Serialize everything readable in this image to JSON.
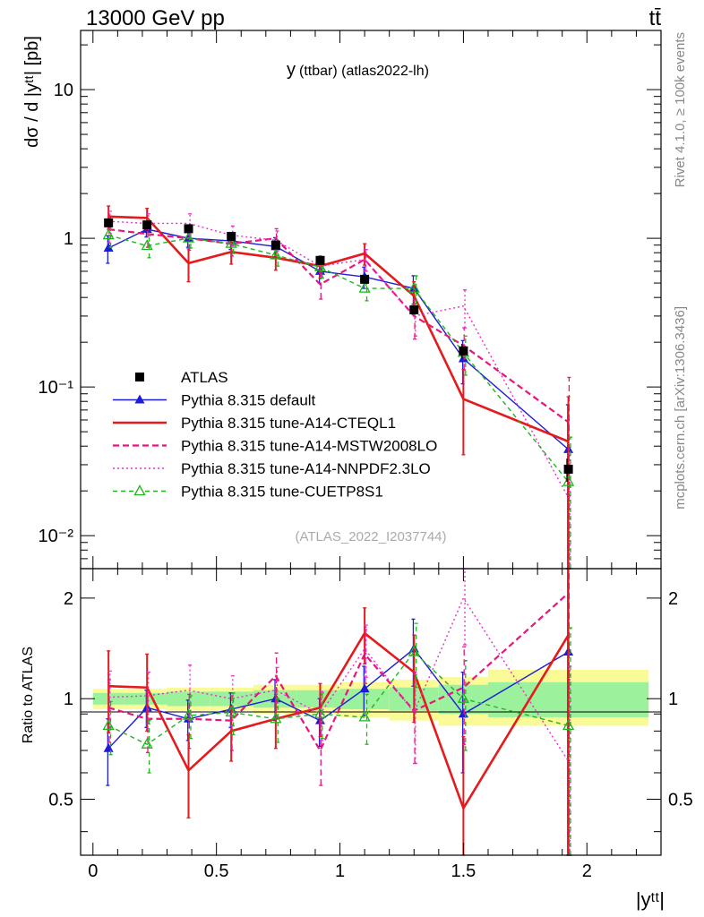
{
  "header": {
    "energy_label": "13000 GeV pp",
    "process_label": "tt̄"
  },
  "side_labels": {
    "rivet": "Rivet 4.1.0, ≥ 100k events",
    "mcplots": "mcplots.cern.ch [arXiv:1306.3436]"
  },
  "chart_data": [
    {
      "type": "line",
      "panel": "main",
      "title": "y(ttbar) (atlas2022-lh)",
      "title_main": "y",
      "title_sub": "(ttbar) (atlas2022-lh)",
      "watermark": "(ATLAS_2022_I2037744)",
      "ylabel": "dσ / d |yᵗᵗ| [pb]",
      "yscale": "log",
      "ylim": [
        0.006,
        25
      ],
      "xlim": [
        -0.05,
        2.3
      ],
      "y_ticks": [
        {
          "value": 10,
          "label": "10"
        },
        {
          "value": 1,
          "label": "1"
        },
        {
          "value": 0.1,
          "label": "10⁻¹"
        },
        {
          "value": 0.01,
          "label": "10⁻²"
        }
      ],
      "x": [
        0.063,
        0.219,
        0.387,
        0.56,
        0.74,
        0.92,
        1.1,
        1.3,
        1.5,
        1.925
      ],
      "bin_edges": [
        0,
        0.125,
        0.3,
        0.475,
        0.65,
        0.825,
        1.0,
        1.2,
        1.4,
        1.6,
        2.25
      ],
      "series": [
        {
          "name": "ATLAS",
          "style": "data",
          "color": "#000000",
          "values": [
            1.27,
            1.23,
            1.16,
            1.03,
            0.9,
            0.71,
            0.53,
            0.33,
            0.175,
            0.028
          ],
          "err_lo": [
            0.05,
            0.05,
            0.05,
            0.04,
            0.04,
            0.03,
            0.03,
            0.02,
            0.02,
            0.005
          ],
          "err_hi": [
            0.05,
            0.05,
            0.05,
            0.04,
            0.04,
            0.03,
            0.03,
            0.02,
            0.02,
            0.005
          ]
        },
        {
          "name": "Pythia 8.315 default",
          "style": "solid",
          "marker": "triangle-filled",
          "color": "#1c1cd8",
          "values": [
            0.86,
            1.15,
            1.0,
            0.96,
            0.88,
            0.6,
            0.55,
            0.46,
            0.155,
            0.038
          ],
          "err_lo": [
            0.18,
            0.13,
            0.13,
            0.12,
            0.13,
            0.1,
            0.09,
            0.1,
            0.05,
            0.038
          ],
          "err_hi": [
            0.18,
            0.13,
            0.13,
            0.12,
            0.13,
            0.1,
            0.09,
            0.1,
            0.05,
            0.038
          ]
        },
        {
          "name": "Pythia 8.315 tune-A14-CTEQL1",
          "style": "solid-thick",
          "color": "#e41a1c",
          "values": [
            1.4,
            1.37,
            0.68,
            0.81,
            0.74,
            0.65,
            0.79,
            0.41,
            0.083,
            0.043
          ],
          "err_lo": [
            0.25,
            0.22,
            0.17,
            0.14,
            0.13,
            0.11,
            0.13,
            0.1,
            0.048,
            0.043
          ],
          "err_hi": [
            0.25,
            0.22,
            0.17,
            0.14,
            0.13,
            0.11,
            0.13,
            0.1,
            0.048,
            0.043
          ]
        },
        {
          "name": "Pythia 8.315 tune-A14-MSTW2008LO",
          "style": "dashed",
          "color": "#e8157a",
          "values": [
            1.15,
            1.07,
            1.0,
            0.92,
            1.0,
            0.49,
            0.72,
            0.3,
            0.19,
            0.058
          ],
          "err_lo": [
            0.22,
            0.2,
            0.17,
            0.16,
            0.16,
            0.1,
            0.12,
            0.09,
            0.06,
            0.058
          ],
          "err_hi": [
            0.22,
            0.2,
            0.17,
            0.16,
            0.16,
            0.1,
            0.12,
            0.09,
            0.06,
            0.058
          ]
        },
        {
          "name": "Pythia 8.315 tune-A14-NNPDF2.3LO",
          "style": "dotted",
          "color": "#e82fd0",
          "values": [
            1.3,
            1.26,
            1.26,
            1.05,
            0.97,
            0.65,
            0.72,
            0.3,
            0.35,
            0.018
          ],
          "err_lo": [
            0.22,
            0.2,
            0.2,
            0.16,
            0.15,
            0.1,
            0.12,
            0.08,
            0.1,
            0.018
          ],
          "err_hi": [
            0.22,
            0.2,
            0.2,
            0.16,
            0.15,
            0.1,
            0.12,
            0.08,
            0.1,
            0.018
          ]
        },
        {
          "name": "Pythia 8.315 tune-CUETP8S1",
          "style": "dashed-small",
          "marker": "triangle-open",
          "color": "#1fb51f",
          "values": [
            1.05,
            0.89,
            1.0,
            0.92,
            0.77,
            0.64,
            0.46,
            0.46,
            0.17,
            0.023
          ],
          "err_lo": [
            0.18,
            0.15,
            0.14,
            0.13,
            0.12,
            0.1,
            0.08,
            0.1,
            0.05,
            0.023
          ],
          "err_hi": [
            0.18,
            0.15,
            0.14,
            0.13,
            0.12,
            0.1,
            0.08,
            0.1,
            0.05,
            0.023
          ]
        }
      ],
      "legend_position": "lower-left"
    },
    {
      "type": "line",
      "panel": "ratio",
      "ylabel": "Ratio to ATLAS",
      "xlabel": "|yᵗᵗ|",
      "yscale": "log",
      "ylim": [
        0.34,
        2.45
      ],
      "xlim": [
        -0.05,
        2.3
      ],
      "y_ticks": [
        {
          "value": 2,
          "label": "2"
        },
        {
          "value": 1,
          "label": "1"
        },
        {
          "value": 0.5,
          "label": "0.5"
        }
      ],
      "x_ticks": [
        {
          "value": 0,
          "label": "0"
        },
        {
          "value": 0.5,
          "label": "0.5"
        },
        {
          "value": 1,
          "label": "1"
        },
        {
          "value": 1.5,
          "label": "1.5"
        },
        {
          "value": 2,
          "label": "2"
        }
      ],
      "uncertainty_band": {
        "inner_color": "#9cf29c",
        "outer_color": "#fafa96",
        "inner_lo": [
          0.96,
          0.96,
          0.95,
          0.95,
          0.94,
          0.94,
          0.93,
          0.92,
          0.9,
          0.88
        ],
        "inner_hi": [
          1.04,
          1.04,
          1.05,
          1.05,
          1.06,
          1.06,
          1.07,
          1.08,
          1.1,
          1.12
        ],
        "outer_lo": [
          0.93,
          0.93,
          0.92,
          0.92,
          0.9,
          0.9,
          0.88,
          0.86,
          0.83,
          0.83
        ],
        "outer_hi": [
          1.07,
          1.07,
          1.08,
          1.08,
          1.1,
          1.1,
          1.12,
          1.14,
          1.16,
          1.22
        ]
      },
      "x": [
        0.063,
        0.219,
        0.387,
        0.56,
        0.74,
        0.92,
        1.1,
        1.3,
        1.5,
        1.925
      ],
      "series": [
        {
          "name": "Pythia 8.315 default",
          "style": "solid",
          "marker": "triangle-filled",
          "color": "#1c1cd8",
          "values": [
            0.71,
            0.94,
            0.87,
            0.93,
            1.0,
            0.86,
            1.07,
            1.41,
            0.9,
            1.38
          ],
          "err_lo": [
            0.16,
            0.12,
            0.12,
            0.11,
            0.14,
            0.14,
            0.18,
            0.32,
            0.3,
            1.3
          ],
          "err_hi": [
            0.16,
            0.12,
            0.12,
            0.11,
            0.14,
            0.14,
            0.18,
            0.32,
            0.3,
            1.3
          ]
        },
        {
          "name": "Pythia 8.315 tune-A14-CTEQL1",
          "style": "solid-thick",
          "color": "#e41a1c",
          "values": [
            1.09,
            1.08,
            0.61,
            0.8,
            0.87,
            0.94,
            1.57,
            1.2,
            0.47,
            1.55
          ],
          "err_lo": [
            0.3,
            0.28,
            0.17,
            0.15,
            0.16,
            0.17,
            0.3,
            0.35,
            0.3,
            1.4
          ],
          "err_hi": [
            0.3,
            0.28,
            0.17,
            0.15,
            0.16,
            0.17,
            0.3,
            0.35,
            0.3,
            1.4
          ]
        },
        {
          "name": "Pythia 8.315 tune-A14-MSTW2008LO",
          "style": "dashed",
          "color": "#e8157a",
          "values": [
            0.94,
            0.87,
            0.87,
            0.86,
            1.17,
            0.7,
            1.36,
            0.92,
            1.08,
            2.07
          ],
          "err_lo": [
            0.2,
            0.18,
            0.16,
            0.16,
            0.2,
            0.15,
            0.25,
            0.28,
            0.35,
            1.9
          ],
          "err_hi": [
            0.2,
            0.18,
            0.16,
            0.16,
            0.2,
            0.15,
            0.25,
            0.28,
            0.35,
            1.9
          ]
        },
        {
          "name": "Pythia 8.315 tune-A14-NNPDF2.3LO",
          "style": "dotted",
          "color": "#e82fd0",
          "values": [
            1.01,
            1.02,
            1.06,
            1.0,
            1.06,
            0.9,
            1.41,
            0.91,
            2.0,
            0.65
          ],
          "err_lo": [
            0.2,
            0.18,
            0.2,
            0.17,
            0.18,
            0.15,
            0.25,
            0.27,
            0.55,
            0.6
          ],
          "err_hi": [
            0.2,
            0.18,
            0.2,
            0.17,
            0.18,
            0.15,
            0.25,
            0.27,
            0.55,
            0.6
          ]
        },
        {
          "name": "Pythia 8.315 tune-CUETP8S1",
          "style": "dashed-small",
          "marker": "triangle-open",
          "color": "#1fb51f",
          "values": [
            0.83,
            0.73,
            0.89,
            0.91,
            0.87,
            0.9,
            0.88,
            1.38,
            1.0,
            0.83
          ],
          "err_lo": [
            0.15,
            0.13,
            0.13,
            0.13,
            0.13,
            0.14,
            0.15,
            0.3,
            0.3,
            0.8
          ],
          "err_hi": [
            0.15,
            0.13,
            0.13,
            0.13,
            0.13,
            0.14,
            0.15,
            0.3,
            0.3,
            0.8
          ]
        }
      ]
    }
  ]
}
